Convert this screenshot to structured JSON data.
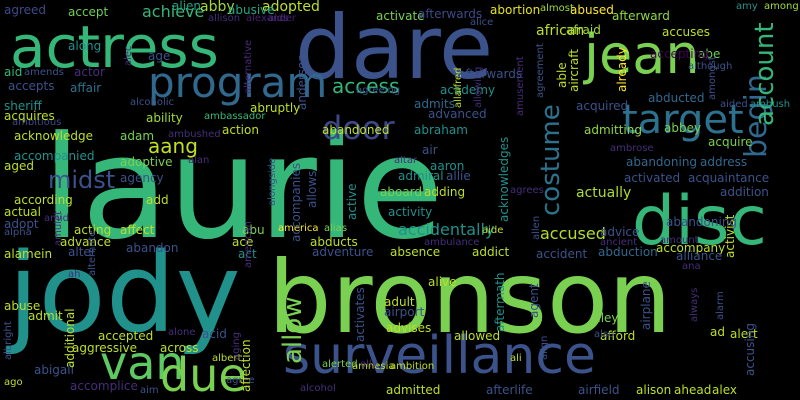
{
  "words": [
    {
      "text": "laurie",
      "color": "#35b779"
    },
    {
      "text": "jody",
      "color": "#21918c"
    },
    {
      "text": "bronson",
      "color": "#7ad151"
    },
    {
      "text": "dare",
      "color": "#3b528b"
    },
    {
      "text": "actress",
      "color": "#35b779"
    },
    {
      "text": "surveillance",
      "color": "#3b528b"
    },
    {
      "text": "disc",
      "color": "#35b779"
    },
    {
      "text": "jean",
      "color": "#7ad151"
    },
    {
      "text": "program",
      "color": "#31688e"
    },
    {
      "text": "target",
      "color": "#2c728e"
    },
    {
      "text": "van",
      "color": "#5ec962"
    },
    {
      "text": "due",
      "color": "#7ad151"
    },
    {
      "text": "door",
      "color": "#3e4989"
    },
    {
      "text": "begin",
      "color": "#31688e"
    },
    {
      "text": "account",
      "color": "#35b779"
    },
    {
      "text": "midst",
      "color": "#3b528b"
    },
    {
      "text": "costume",
      "color": "#2c728e"
    },
    {
      "text": "allow",
      "color": "#7ad151"
    },
    {
      "text": "aang",
      "color": "#c2df23"
    },
    {
      "text": "accused",
      "color": "#b5de2b"
    },
    {
      "text": "actually",
      "color": "#addc30"
    },
    {
      "text": "accidentally",
      "color": "#21918c"
    },
    {
      "text": "access",
      "color": "#35b779"
    },
    {
      "text": "achieve",
      "color": "#35b779"
    },
    {
      "text": "abby",
      "color": "#a0da39"
    },
    {
      "text": "abused",
      "color": "#fde725"
    },
    {
      "text": "afterward",
      "color": "#8fd744"
    },
    {
      "text": "accuses",
      "color": "#bddf26"
    },
    {
      "text": "african",
      "color": "#bddf26"
    },
    {
      "text": "abortion",
      "color": "#e5e419"
    },
    {
      "text": "adopted",
      "color": "#bddf26"
    },
    {
      "text": "abusive",
      "color": "#22a785"
    },
    {
      "text": "activate",
      "color": "#7ad151"
    },
    {
      "text": "accept",
      "color": "#6ece58"
    },
    {
      "text": "agreed",
      "color": "#3e4989"
    },
    {
      "text": "alien",
      "color": "#21a585"
    },
    {
      "text": "allison",
      "color": "#472d7b"
    },
    {
      "text": "alexander",
      "color": "#481f70"
    },
    {
      "text": "afterwards",
      "color": "#3e4989"
    },
    {
      "text": "alice",
      "color": "#3b528b"
    },
    {
      "text": "afraid",
      "color": "#a2da37"
    },
    {
      "text": "abe",
      "color": "#6ece58"
    },
    {
      "text": "accepting",
      "color": "#440154"
    },
    {
      "text": "amy",
      "color": "#21918c"
    },
    {
      "text": "among",
      "color": "#a0da39"
    },
    {
      "text": "already",
      "color": "#fde725"
    },
    {
      "text": "almost",
      "color": "#a0da39"
    },
    {
      "text": "along",
      "color": "#21918c"
    },
    {
      "text": "age",
      "color": "#3b528b"
    },
    {
      "text": "actor",
      "color": "#472d7b"
    },
    {
      "text": "aid",
      "color": "#35b779"
    },
    {
      "text": "amends",
      "color": "#3b528b"
    },
    {
      "text": "accepts",
      "color": "#3b528b"
    },
    {
      "text": "affair",
      "color": "#2c728e"
    },
    {
      "text": "academy",
      "color": "#21918c"
    },
    {
      "text": "admits",
      "color": "#31688e"
    },
    {
      "text": "agreeing",
      "color": "#3b528b"
    },
    {
      "text": "sheriff",
      "color": "#21918c"
    },
    {
      "text": "ambitious",
      "color": "#3e4989"
    },
    {
      "text": "acquires",
      "color": "#bddf26"
    },
    {
      "text": "ability",
      "color": "#a0da39"
    },
    {
      "text": "abruptly",
      "color": "#bddf26"
    },
    {
      "text": "alcoholic",
      "color": "#3b528b"
    },
    {
      "text": "ambassador",
      "color": "#35b779"
    },
    {
      "text": "acquired",
      "color": "#3b528b"
    },
    {
      "text": "abducted",
      "color": "#31688e"
    },
    {
      "text": "aided",
      "color": "#3b528b"
    },
    {
      "text": "ambush",
      "color": "#21918c"
    },
    {
      "text": "acknowledge",
      "color": "#bddf26"
    },
    {
      "text": "adam",
      "color": "#7ad151"
    },
    {
      "text": "action",
      "color": "#bddf26"
    },
    {
      "text": "abandoned",
      "color": "#bddf26"
    },
    {
      "text": "abraham",
      "color": "#21918c"
    },
    {
      "text": "advanced",
      "color": "#3b528b"
    },
    {
      "text": "admitting",
      "color": "#8fd744"
    },
    {
      "text": "abbey",
      "color": "#7ad151"
    },
    {
      "text": "acquire",
      "color": "#7ad151"
    },
    {
      "text": "accompanied",
      "color": "#21918c"
    },
    {
      "text": "aged",
      "color": "#bddf26"
    },
    {
      "text": "adoptive",
      "color": "#7ad151"
    },
    {
      "text": "agency",
      "color": "#3b528b"
    },
    {
      "text": "alan",
      "color": "#472d7b"
    },
    {
      "text": "according",
      "color": "#bddf26"
    },
    {
      "text": "aboard",
      "color": "#7ad151"
    },
    {
      "text": "adding",
      "color": "#bddf26"
    },
    {
      "text": "admiral",
      "color": "#21918c"
    },
    {
      "text": "allie",
      "color": "#3b528b"
    },
    {
      "text": "aaron",
      "color": "#21918c"
    },
    {
      "text": "air",
      "color": "#3b528b"
    },
    {
      "text": "altar",
      "color": "#472d7b"
    },
    {
      "text": "abandoning",
      "color": "#31688e"
    },
    {
      "text": "address",
      "color": "#31688e"
    },
    {
      "text": "activated",
      "color": "#3b528b"
    },
    {
      "text": "acquaintance",
      "color": "#3b528b"
    },
    {
      "text": "addition",
      "color": "#3b528b"
    },
    {
      "text": "actual",
      "color": "#bddf26"
    },
    {
      "text": "adopt",
      "color": "#3b528b"
    },
    {
      "text": "acting",
      "color": "#bddf26"
    },
    {
      "text": "affect",
      "color": "#bddf26"
    },
    {
      "text": "add",
      "color": "#bddf26"
    },
    {
      "text": "activity",
      "color": "#21918c"
    },
    {
      "text": "advice",
      "color": "#3b528b"
    },
    {
      "text": "activist",
      "color": "#bddf26"
    },
    {
      "text": "alpha",
      "color": "#3b528b"
    },
    {
      "text": "abu",
      "color": "#7ad151"
    },
    {
      "text": "america",
      "color": "#fde725"
    },
    {
      "text": "alias",
      "color": "#7ad151"
    },
    {
      "text": "accompany",
      "color": "#bddf26"
    },
    {
      "text": "advance",
      "color": "#bddf26"
    },
    {
      "text": "ace",
      "color": "#bddf26"
    },
    {
      "text": "abducts",
      "color": "#bddf26"
    },
    {
      "text": "accident",
      "color": "#3b528b"
    },
    {
      "text": "abduction",
      "color": "#31688e"
    },
    {
      "text": "alliance",
      "color": "#3b528b"
    },
    {
      "text": "alamein",
      "color": "#bddf26"
    },
    {
      "text": "alter",
      "color": "#3b528b"
    },
    {
      "text": "abandon",
      "color": "#3b528b"
    },
    {
      "text": "act",
      "color": "#21918c"
    },
    {
      "text": "adventure",
      "color": "#3b528b"
    },
    {
      "text": "absence",
      "color": "#bddf26"
    },
    {
      "text": "addict",
      "color": "#bddf26"
    },
    {
      "text": "abuse",
      "color": "#bddf26"
    },
    {
      "text": "admit",
      "color": "#bddf26"
    },
    {
      "text": "alive",
      "color": "#bddf26"
    },
    {
      "text": "adult",
      "color": "#bddf26"
    },
    {
      "text": "alley",
      "color": "#7ad151"
    },
    {
      "text": "accepted",
      "color": "#bddf26"
    },
    {
      "text": "alone",
      "color": "#472d7b"
    },
    {
      "text": "acid",
      "color": "#3b528b"
    },
    {
      "text": "across",
      "color": "#bddf26"
    },
    {
      "text": "aggressive",
      "color": "#bddf26"
    },
    {
      "text": "abigail",
      "color": "#3b528b"
    },
    {
      "text": "accomplice",
      "color": "#472d7b"
    },
    {
      "text": "albert",
      "color": "#bddf26"
    },
    {
      "text": "agree",
      "color": "#3b528b"
    },
    {
      "text": "aim",
      "color": "#3b528b"
    },
    {
      "text": "alcohol",
      "color": "#472d7b"
    },
    {
      "text": "admitted",
      "color": "#bddf26"
    },
    {
      "text": "afterlife",
      "color": "#3b528b"
    },
    {
      "text": "airfield",
      "color": "#3b528b"
    },
    {
      "text": "alison",
      "color": "#bddf26"
    },
    {
      "text": "ahead",
      "color": "#bddf26"
    },
    {
      "text": "alex",
      "color": "#bddf26"
    },
    {
      "text": "airport",
      "color": "#3b528b"
    },
    {
      "text": "advises",
      "color": "#bddf26"
    },
    {
      "text": "afford",
      "color": "#bddf26"
    },
    {
      "text": "allowed",
      "color": "#bddf26"
    },
    {
      "text": "ago",
      "color": "#bddf26"
    },
    {
      "text": "ad",
      "color": "#bddf26"
    },
    {
      "text": "alert",
      "color": "#bddf26"
    },
    {
      "text": "alerted",
      "color": "#7ad151"
    },
    {
      "text": "amnesia",
      "color": "#bddf26"
    },
    {
      "text": "ambition",
      "color": "#bddf26"
    },
    {
      "text": "also",
      "color": "#3b528b"
    },
    {
      "text": "amount",
      "color": "#472d7b"
    },
    {
      "text": "ancient",
      "color": "#472d7b"
    },
    {
      "text": "aide",
      "color": "#bddf26"
    },
    {
      "text": "ambulance",
      "color": "#472d7b"
    },
    {
      "text": "ambrose",
      "color": "#472d7b"
    },
    {
      "text": "agrees",
      "color": "#472d7b"
    },
    {
      "text": "ali",
      "color": "#bddf26"
    },
    {
      "text": "ally",
      "color": "#472d7b"
    },
    {
      "text": "amid",
      "color": "#472d7b"
    },
    {
      "text": "ana",
      "color": "#472d7b"
    },
    {
      "text": "aids",
      "color": "#472d7b"
    },
    {
      "text": "alec",
      "color": "#472d7b"
    },
    {
      "text": "ah",
      "color": "#472d7b"
    },
    {
      "text": "aging",
      "color": "#472d7b"
    },
    {
      "text": "alongside",
      "color": "#3b528b"
    },
    {
      "text": "accompanies",
      "color": "#3b528b"
    },
    {
      "text": "allows",
      "color": "#3b528b"
    },
    {
      "text": "active",
      "color": "#21918c"
    },
    {
      "text": "acknowledges",
      "color": "#21918c"
    },
    {
      "text": "aftermath",
      "color": "#21918c"
    },
    {
      "text": "agent",
      "color": "#3b528b"
    },
    {
      "text": "activates",
      "color": "#3b528b"
    },
    {
      "text": "additional",
      "color": "#bddf26"
    },
    {
      "text": "affection",
      "color": "#bddf26"
    },
    {
      "text": "alternate",
      "color": "#3b528b"
    },
    {
      "text": "albright",
      "color": "#3b528b"
    },
    {
      "text": "airplane",
      "color": "#3b528b"
    },
    {
      "text": "always",
      "color": "#472d7b"
    },
    {
      "text": "alarm",
      "color": "#3b528b"
    },
    {
      "text": "accusing",
      "color": "#3b528b"
    },
    {
      "text": "align",
      "color": "#3b528b"
    },
    {
      "text": "allen",
      "color": "#3b528b"
    },
    {
      "text": "able",
      "color": "#bddf26"
    },
    {
      "text": "aircraft",
      "color": "#bddf26"
    },
    {
      "text": "agreement",
      "color": "#3b528b"
    },
    {
      "text": "amusement",
      "color": "#472d7b"
    },
    {
      "text": "allowing",
      "color": "#472d7b"
    },
    {
      "text": "allalfred",
      "color": "#bddf26"
    },
    {
      "text": "afterwards",
      "color": "#3b528b"
    },
    {
      "text": "anderson",
      "color": "#3b528b"
    },
    {
      "text": "although",
      "color": "#3b528b"
    },
    {
      "text": "amongst",
      "color": "#3b528b"
    },
    {
      "text": "amulet",
      "color": "#472d7b"
    },
    {
      "text": "ambushed",
      "color": "#472d7b"
    },
    {
      "text": "alternative",
      "color": "#472d7b"
    },
    {
      "text": "american",
      "color": "#472d7b"
    },
    {
      "text": "abandoning",
      "color": "#3b528b"
    }
  ]
}
